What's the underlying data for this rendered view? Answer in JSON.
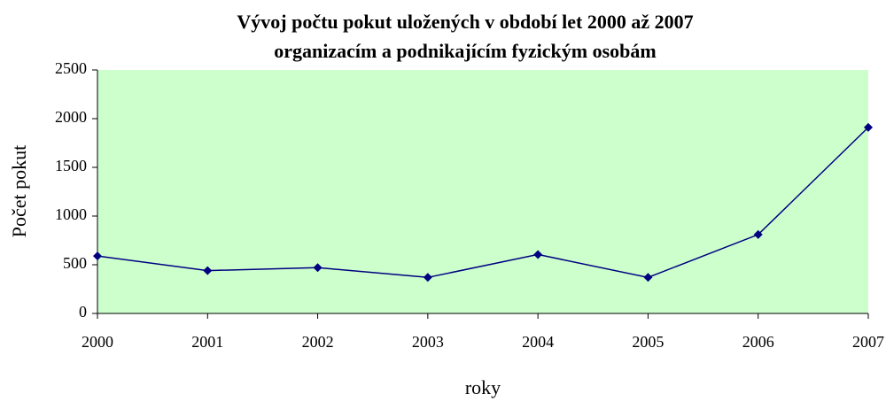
{
  "chart_data": {
    "type": "line",
    "title": [
      "Vývoj počtu pokut uložených v období let 2000 až 2007",
      "organizacím a podnikajícím fyzickým osobám"
    ],
    "xlabel": "roky",
    "ylabel": "Počet pokut",
    "categories": [
      "2000",
      "2001",
      "2002",
      "2003",
      "2004",
      "2005",
      "2006",
      "2007"
    ],
    "series": [
      {
        "name": "Počet pokut",
        "color": "#000080",
        "values": [
          590,
          440,
          470,
          370,
          605,
          370,
          810,
          1910
        ]
      }
    ],
    "ylim": [
      0,
      2500
    ],
    "yticks": [
      0,
      500,
      1000,
      1500,
      2000,
      2500
    ],
    "plot_background": "#ccffcc",
    "grid": false,
    "legend": false
  }
}
